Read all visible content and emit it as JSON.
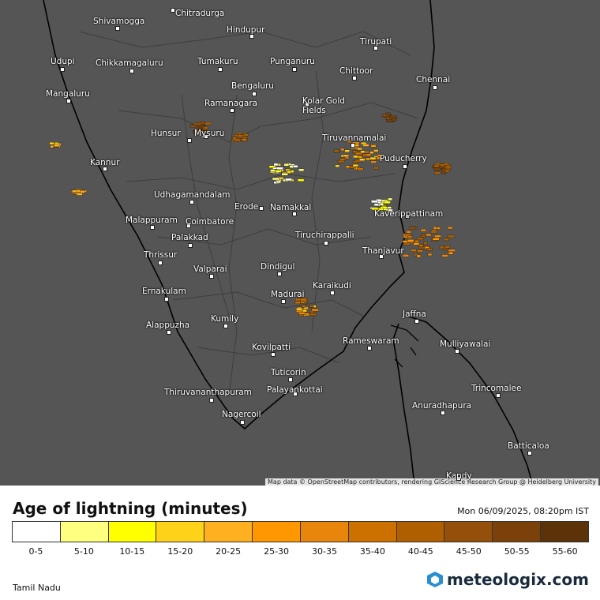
{
  "map": {
    "cities": [
      "Shivamogga",
      "Chitradurga",
      "Hindupur",
      "Tirupati",
      "Udupi",
      "Chikkamagaluru",
      "Tumakuru",
      "Punganuru",
      "Chittoor",
      "Chennai",
      "Mangaluru",
      "Bengaluru",
      "Ramanagara",
      "Kolar Gold Fields",
      "Hunsur",
      "Mysuru",
      "Tiruvannamalai",
      "Kannur",
      "Puducherry",
      "Udhagamandalam",
      "Erode",
      "Namakkal",
      "Kaverippattinam",
      "Malappuram",
      "Coimbatore",
      "Palakkad",
      "Tiruchirappalli",
      "Thanjavur",
      "Thrissur",
      "Valparai",
      "Dindigul",
      "Ernakulam",
      "Karaikudi",
      "Madurai",
      "Jaffna",
      "Alappuzha",
      "Kumily",
      "Mulliyawalai",
      "Rameswaram",
      "Kovilpatti",
      "Tuticorin",
      "Trincomalee",
      "Thiruvananthapuram",
      "Palayankottai",
      "Anuradhapura",
      "Nagercoil",
      "Batticaloa",
      "Kandy"
    ],
    "attribution": "Map data © OpenStreetMap contributors, rendering GIScience Research Group @ Heidelberg University"
  },
  "legend": {
    "title": "Age of lightning (minutes)",
    "timestamp": "Mon 06/09/2025, 08:20pm IST",
    "items": [
      {
        "label": "0-5",
        "color": "#ffffff"
      },
      {
        "label": "5-10",
        "color": "#ffff80"
      },
      {
        "label": "10-15",
        "color": "#ffff00"
      },
      {
        "label": "15-20",
        "color": "#ffd21a"
      },
      {
        "label": "20-25",
        "color": "#ffb020"
      },
      {
        "label": "25-30",
        "color": "#ff9800"
      },
      {
        "label": "30-35",
        "color": "#e8860c"
      },
      {
        "label": "35-40",
        "color": "#cc7000"
      },
      {
        "label": "40-45",
        "color": "#b05f00"
      },
      {
        "label": "45-50",
        "color": "#94500a"
      },
      {
        "label": "50-55",
        "color": "#7a420a"
      },
      {
        "label": "55-60",
        "color": "#5c3208"
      }
    ]
  },
  "footer": {
    "region": "Tamil Nadu",
    "logo": "meteologix.com"
  }
}
